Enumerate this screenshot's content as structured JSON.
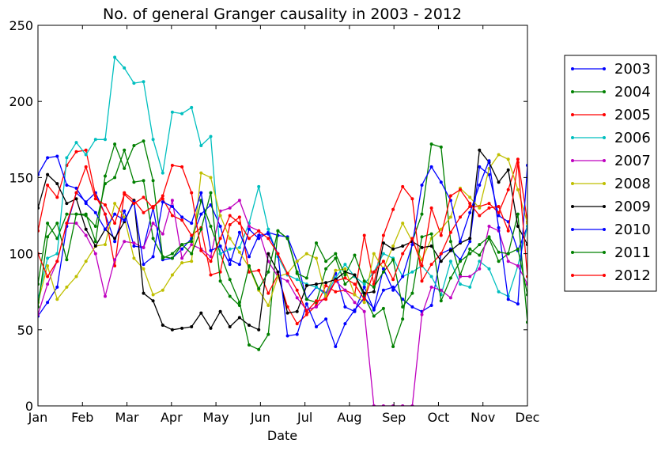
{
  "chart_data": {
    "type": "line",
    "title": "No. of general Granger causality in 2003 - 2012",
    "xlabel": "Date",
    "ylabel": "",
    "xlim": [
      0,
      11
    ],
    "ylim": [
      0,
      250
    ],
    "x_ticks": [
      "Jan",
      "Feb",
      "Mar",
      "Apr",
      "May",
      "Jun",
      "Jul",
      "Aug",
      "Sep",
      "Oct",
      "Nov",
      "Dec"
    ],
    "y_ticks": [
      0,
      50,
      100,
      150,
      200,
      250
    ],
    "grid": false,
    "legend_position": "right",
    "points_per_series": 52,
    "series": [
      {
        "name": "2003",
        "color": "#0000ff",
        "values": [
          59,
          68,
          78,
          118,
          140,
          134,
          140,
          126,
          108,
          128,
          105,
          104,
          130,
          96,
          97,
          103,
          110,
          126,
          132,
          118,
          96,
          93,
          116,
          110,
          114,
          112,
          111,
          95,
          70,
          78,
          74,
          87,
          65,
          62,
          78,
          63,
          76,
          78,
          70,
          65,
          62,
          66,
          100,
          103,
          96,
          108,
          157,
          152,
          125,
          121,
          102,
          118
        ]
      },
      {
        "name": "2004",
        "color": "#008000",
        "values": [
          80,
          120,
          110,
          126,
          126,
          125,
          118,
          146,
          150,
          168,
          147,
          148,
          110,
          98,
          97,
          106,
          108,
          135,
          118,
          100,
          83,
          68,
          40,
          37,
          47,
          115,
          110,
          88,
          70,
          68,
          90,
          97,
          80,
          86,
          72,
          59,
          64,
          39,
          57,
          108,
          126,
          172,
          170,
          108,
          86,
          103,
          99,
          110,
          95,
          100,
          126,
          55
        ]
      },
      {
        "name": "2005",
        "color": "#ff0000",
        "values": [
          115,
          145,
          137,
          158,
          167,
          168,
          138,
          126,
          92,
          140,
          135,
          127,
          131,
          136,
          125,
          122,
          112,
          117,
          86,
          88,
          119,
          124,
          88,
          89,
          74,
          86,
          65,
          54,
          60,
          66,
          79,
          75,
          76,
          73,
          112,
          80,
          112,
          129,
          144,
          136,
          82,
          93,
          100,
          114,
          124,
          131,
          131,
          133,
          127,
          142,
          162,
          121
        ]
      },
      {
        "name": "2006",
        "color": "#00bfbf",
        "values": [
          70,
          97,
          100,
          163,
          173,
          165,
          175,
          175,
          229,
          222,
          212,
          213,
          175,
          153,
          193,
          192,
          196,
          171,
          177,
          100,
          103,
          104,
          120,
          144,
          116,
          98,
          86,
          83,
          80,
          78,
          73,
          84,
          93,
          85,
          80,
          88,
          100,
          97,
          85,
          88,
          92,
          85,
          73,
          95,
          80,
          78,
          95,
          90,
          75,
          72,
          92,
          118
        ]
      },
      {
        "name": "2007",
        "color": "#bf00bf",
        "values": [
          60,
          80,
          95,
          120,
          120,
          112,
          100,
          72,
          96,
          108,
          107,
          104,
          120,
          113,
          135,
          97,
          106,
          103,
          98,
          128,
          130,
          135,
          118,
          115,
          95,
          85,
          82,
          71,
          63,
          65,
          72,
          82,
          76,
          68,
          62,
          0,
          0,
          0,
          0,
          0,
          60,
          78,
          76,
          71,
          85,
          85,
          90,
          118,
          115,
          95,
          92,
          80
        ]
      },
      {
        "name": "2008",
        "color": "#bfbf00",
        "values": [
          68,
          92,
          70,
          78,
          85,
          95,
          105,
          106,
          133,
          124,
          97,
          90,
          73,
          76,
          86,
          94,
          95,
          153,
          150,
          125,
          110,
          101,
          91,
          76,
          66,
          85,
          87,
          95,
          100,
          97,
          72,
          89,
          90,
          73,
          68,
          100,
          90,
          105,
          120,
          108,
          96,
          110,
          116,
          124,
          143,
          137,
          130,
          156,
          165,
          162,
          142,
          120
        ]
      },
      {
        "name": "2009",
        "color": "#000000",
        "values": [
          130,
          152,
          146,
          133,
          136,
          116,
          105,
          116,
          110,
          121,
          135,
          74,
          69,
          53,
          50,
          51,
          52,
          61,
          51,
          62,
          52,
          58,
          53,
          50,
          100,
          88,
          61,
          62,
          79,
          80,
          81,
          83,
          88,
          86,
          74,
          75,
          107,
          103,
          105,
          108,
          104,
          105,
          95,
          102,
          107,
          110,
          168,
          160,
          147,
          155,
          118,
          106
        ]
      },
      {
        "name": "2010",
        "color": "#0000ff",
        "values": [
          152,
          163,
          164,
          145,
          143,
          133,
          127,
          116,
          126,
          122,
          134,
          93,
          98,
          134,
          131,
          124,
          120,
          140,
          102,
          105,
          93,
          114,
          98,
          112,
          113,
          100,
          46,
          47,
          67,
          52,
          57,
          39,
          54,
          63,
          71,
          64,
          90,
          76,
          85,
          106,
          145,
          157,
          147,
          135,
          108,
          127,
          145,
          161,
          117,
          70,
          67,
          158
        ]
      },
      {
        "name": "2011",
        "color": "#008000",
        "values": [
          65,
          111,
          120,
          96,
          126,
          126,
          108,
          151,
          172,
          156,
          171,
          174,
          148,
          97,
          100,
          106,
          100,
          116,
          140,
          82,
          72,
          66,
          92,
          77,
          88,
          115,
          110,
          87,
          84,
          107,
          95,
          100,
          86,
          99,
          82,
          78,
          88,
          96,
          65,
          74,
          111,
          113,
          69,
          84,
          95,
          100,
          106,
          111,
          101,
          100,
          103,
          73
        ]
      },
      {
        "name": "2012",
        "color": "#ff0000",
        "values": [
          100,
          85,
          95,
          120,
          140,
          157,
          136,
          132,
          120,
          139,
          133,
          137,
          130,
          138,
          158,
          157,
          140,
          102,
          95,
          110,
          125,
          120,
          110,
          115,
          110,
          100,
          87,
          76,
          62,
          69,
          70,
          82,
          84,
          80,
          70,
          88,
          95,
          83,
          100,
          110,
          92,
          130,
          112,
          138,
          142,
          133,
          125,
          130,
          131,
          115,
          160,
          85
        ]
      }
    ]
  }
}
